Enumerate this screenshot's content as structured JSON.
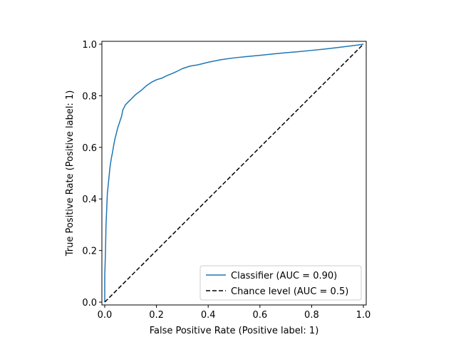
{
  "chart_data": {
    "type": "line",
    "xlabel": "False Positive Rate (Positive label: 1)",
    "ylabel": "True Positive Rate (Positive label: 1)",
    "xlim": [
      0.0,
      1.0
    ],
    "ylim": [
      0.0,
      1.0
    ],
    "xticks": [
      "0.0",
      "0.2",
      "0.4",
      "0.6",
      "0.8",
      "1.0"
    ],
    "yticks": [
      "0.0",
      "0.2",
      "0.4",
      "0.6",
      "0.8",
      "1.0"
    ],
    "grid": false,
    "legend_position": "lower-right",
    "series": [
      {
        "name": "Classifier (AUC = 0.90)",
        "color": "#1f77b4",
        "style": "solid",
        "x": [
          0.0,
          0.0,
          0.003,
          0.005,
          0.008,
          0.01,
          0.015,
          0.02,
          0.025,
          0.03,
          0.035,
          0.04,
          0.045,
          0.05,
          0.055,
          0.06,
          0.065,
          0.07,
          0.08,
          0.09,
          0.1,
          0.11,
          0.12,
          0.14,
          0.16,
          0.18,
          0.2,
          0.22,
          0.24,
          0.26,
          0.28,
          0.3,
          0.33,
          0.36,
          0.4,
          0.45,
          0.5,
          0.55,
          0.6,
          0.65,
          0.7,
          0.75,
          0.8,
          0.85,
          0.9,
          0.95,
          0.98,
          1.0
        ],
        "y": [
          0.0,
          0.1,
          0.2,
          0.3,
          0.37,
          0.42,
          0.47,
          0.52,
          0.555,
          0.58,
          0.61,
          0.635,
          0.655,
          0.675,
          0.69,
          0.705,
          0.72,
          0.745,
          0.765,
          0.775,
          0.785,
          0.795,
          0.805,
          0.82,
          0.838,
          0.852,
          0.862,
          0.868,
          0.878,
          0.886,
          0.895,
          0.905,
          0.915,
          0.92,
          0.93,
          0.94,
          0.947,
          0.952,
          0.957,
          0.962,
          0.967,
          0.971,
          0.976,
          0.981,
          0.987,
          0.993,
          0.997,
          1.0
        ]
      },
      {
        "name": "Chance level (AUC = 0.5)",
        "color": "#000000",
        "style": "dashed",
        "x": [
          0.0,
          1.0
        ],
        "y": [
          0.0,
          1.0
        ]
      }
    ]
  }
}
